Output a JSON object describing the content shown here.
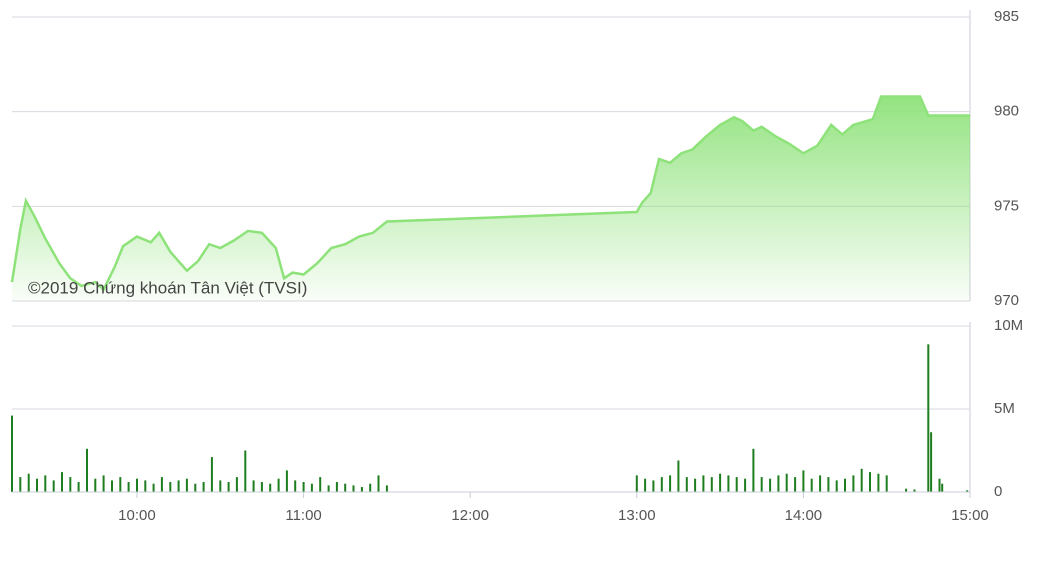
{
  "chart_data": [
    {
      "type": "line",
      "annotation": "©2019 Chứng khoán Tân Việt (TVSI)",
      "color": "#8ee27a",
      "x": [
        555,
        558,
        560,
        563,
        567,
        572,
        576,
        580,
        585,
        588,
        592,
        595,
        600,
        605,
        608,
        612,
        618,
        622,
        626,
        630,
        635,
        640,
        645,
        650,
        653,
        656,
        660,
        665,
        670,
        675,
        680,
        685,
        690,
        780,
        782,
        785,
        788,
        792,
        796,
        800,
        805,
        810,
        815,
        818,
        822,
        825,
        830,
        835,
        840,
        845,
        850,
        854,
        858,
        865,
        868,
        882,
        885,
        900
      ],
      "values": [
        971.0,
        973.8,
        975.3,
        974.5,
        973.3,
        972.0,
        971.2,
        970.8,
        971.0,
        970.6,
        971.8,
        972.9,
        973.4,
        973.1,
        973.6,
        972.6,
        971.6,
        972.1,
        973.0,
        972.8,
        973.2,
        973.7,
        973.6,
        972.8,
        971.2,
        971.5,
        971.4,
        972.0,
        972.8,
        973.0,
        973.4,
        973.6,
        974.2,
        974.7,
        975.2,
        975.7,
        977.5,
        977.3,
        977.8,
        978.0,
        978.7,
        979.3,
        979.7,
        979.5,
        979.0,
        979.2,
        978.7,
        978.3,
        977.8,
        978.2,
        979.3,
        978.8,
        979.3,
        979.6,
        980.8,
        980.8,
        979.8,
        979.8
      ],
      "xlim": [
        555,
        900
      ],
      "xticks": [
        {
          "value": 600,
          "label": "10:00"
        },
        {
          "value": 660,
          "label": "11:00"
        },
        {
          "value": 720,
          "label": "12:00"
        },
        {
          "value": 780,
          "label": "13:00"
        },
        {
          "value": 840,
          "label": "14:00"
        },
        {
          "value": 900,
          "label": "15:00"
        }
      ],
      "ylim": [
        970,
        985
      ],
      "yticks": [
        970,
        975,
        980,
        985
      ],
      "grid": true
    },
    {
      "type": "bar",
      "color": "#1e7d1e",
      "x": [
        555,
        558,
        561,
        564,
        567,
        570,
        573,
        576,
        579,
        582,
        585,
        588,
        591,
        594,
        597,
        600,
        603,
        606,
        609,
        612,
        615,
        618,
        621,
        624,
        627,
        630,
        633,
        636,
        639,
        642,
        645,
        648,
        651,
        654,
        657,
        660,
        663,
        666,
        669,
        672,
        675,
        678,
        681,
        684,
        687,
        690,
        780,
        783,
        786,
        789,
        792,
        795,
        798,
        801,
        804,
        807,
        810,
        813,
        816,
        819,
        822,
        825,
        828,
        831,
        834,
        837,
        840,
        843,
        846,
        849,
        852,
        855,
        858,
        861,
        864,
        867,
        870,
        877,
        880,
        885,
        886,
        889,
        890,
        899
      ],
      "values": [
        4600000,
        900000,
        1100000,
        800000,
        1000000,
        700000,
        1200000,
        900000,
        600000,
        2600000,
        800000,
        1000000,
        700000,
        900000,
        600000,
        800000,
        700000,
        500000,
        900000,
        600000,
        700000,
        800000,
        500000,
        600000,
        2100000,
        700000,
        600000,
        900000,
        2500000,
        700000,
        600000,
        500000,
        800000,
        1300000,
        700000,
        600000,
        500000,
        900000,
        400000,
        600000,
        500000,
        400000,
        300000,
        500000,
        1000000,
        400000,
        1000000,
        800000,
        700000,
        900000,
        1000000,
        1900000,
        900000,
        800000,
        1000000,
        900000,
        1100000,
        1000000,
        900000,
        800000,
        2600000,
        900000,
        800000,
        1000000,
        1100000,
        900000,
        1300000,
        800000,
        1000000,
        900000,
        700000,
        800000,
        1000000,
        1400000,
        1200000,
        1100000,
        1000000,
        200000,
        150000,
        8900000,
        3600000,
        800000,
        500000,
        100000
      ],
      "ylim": [
        0,
        10000000
      ],
      "yticks": [
        {
          "value": 0,
          "label": "0"
        },
        {
          "value": 5000000,
          "label": "5M"
        },
        {
          "value": 10000000,
          "label": "10M"
        }
      ],
      "grid": true
    }
  ]
}
